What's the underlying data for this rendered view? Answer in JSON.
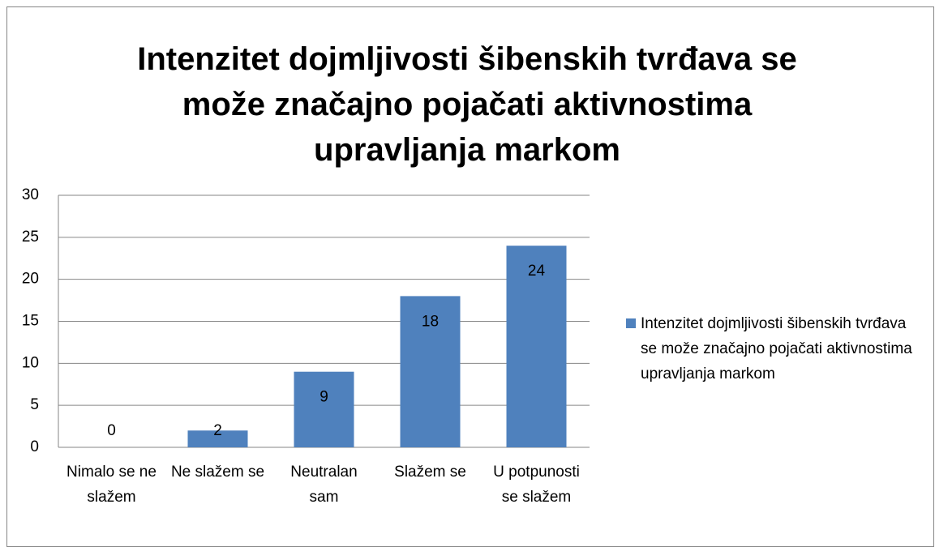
{
  "chart_data": {
    "type": "bar",
    "title": "Intenzitet dojmljivosti šibenskih tvrđava se može značajno pojačati aktivnostima upravljanja markom",
    "categories": [
      "Nimalo se ne slažem",
      "Ne slažem se",
      "Neutralan sam",
      "Slažem se",
      "U potpunosti se slažem"
    ],
    "series": [
      {
        "name": "Intenzitet dojmljivosti šibenskih tvrđava se može značajno pojačati aktivnostima upravljanja markom",
        "color": "#4f81bd",
        "values": [
          0,
          2,
          9,
          18,
          24
        ]
      }
    ],
    "ylim": [
      0,
      30
    ],
    "yticks": [
      0,
      5,
      10,
      15,
      20,
      25,
      30
    ],
    "grid": true,
    "legend": "right"
  }
}
